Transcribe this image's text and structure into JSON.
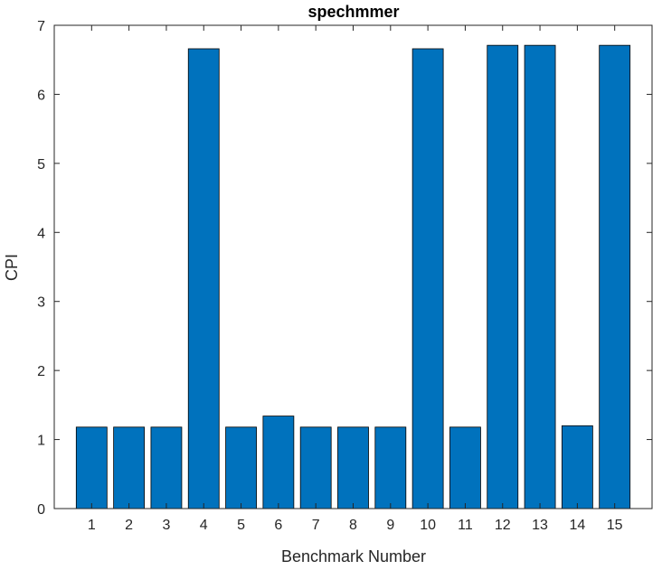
{
  "chart_data": {
    "type": "bar",
    "title": "spechmmer",
    "xlabel": "Benchmark Number",
    "ylabel": "CPI",
    "categories": [
      "1",
      "2",
      "3",
      "4",
      "5",
      "6",
      "7",
      "8",
      "9",
      "10",
      "11",
      "12",
      "13",
      "14",
      "15"
    ],
    "values": [
      1.18,
      1.18,
      1.18,
      6.66,
      1.18,
      1.34,
      1.18,
      1.18,
      1.18,
      6.66,
      1.18,
      6.71,
      6.71,
      1.2,
      6.71
    ],
    "ylim": [
      0,
      7
    ],
    "yticks": [
      0,
      1,
      2,
      3,
      4,
      5,
      6,
      7
    ],
    "grid": false,
    "legend": "none",
    "colors": {
      "bar": "#0072BD",
      "bar_edge": "#000000",
      "axis": "#262626"
    }
  }
}
